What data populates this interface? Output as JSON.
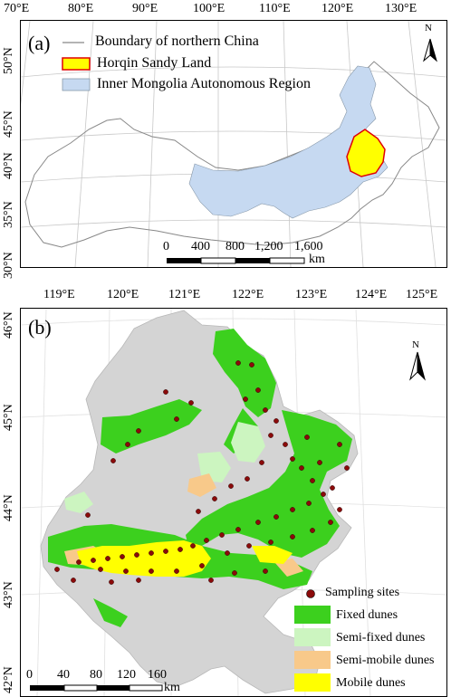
{
  "panel_a": {
    "label": "(a)",
    "top_ticks": [
      "70°E",
      "80°E",
      "90°E",
      "100°E",
      "110°E",
      "120°E",
      "130°E"
    ],
    "left_ticks": [
      "50°N",
      "45°N",
      "40°N",
      "35°N",
      "30°N"
    ],
    "legend": {
      "boundary": "Boundary of northern China",
      "horqin": "Horqin Sandy Land",
      "inner_mongolia": "Inner Mongolia Autonomous Region"
    },
    "north": "N",
    "scale": {
      "labels": [
        "0",
        "400",
        "800",
        "1,200",
        "1,600"
      ],
      "unit": "km"
    },
    "colors": {
      "inner_mongolia": "#c6d9f1",
      "horqin_fill": "#ffff00",
      "horqin_edge": "#e00000",
      "boundary": "#888888"
    }
  },
  "panel_b": {
    "label": "(b)",
    "top_ticks": [
      "119°E",
      "120°E",
      "121°E",
      "122°E",
      "123°E",
      "124°E",
      "125°E"
    ],
    "left_ticks": [
      "46°N",
      "45°N",
      "44°N",
      "43°N",
      "42°N"
    ],
    "north": "N",
    "legend": {
      "sites": "Sampling sites",
      "fixed": "Fixed dunes",
      "semi_fixed": "Semi-fixed dunes",
      "semi_mobile": "Semi-mobile dunes",
      "mobile": "Mobile dunes"
    },
    "scale": {
      "labels": [
        "0",
        "40",
        "80",
        "120",
        "160"
      ],
      "unit": "km"
    },
    "colors": {
      "region": "#d4d4d4",
      "fixed": "#3cd01e",
      "semi_fixed": "#ccf5c0",
      "semi_mobile": "#f8c98a",
      "mobile": "#ffff00",
      "site": "#8b0a0a"
    }
  }
}
